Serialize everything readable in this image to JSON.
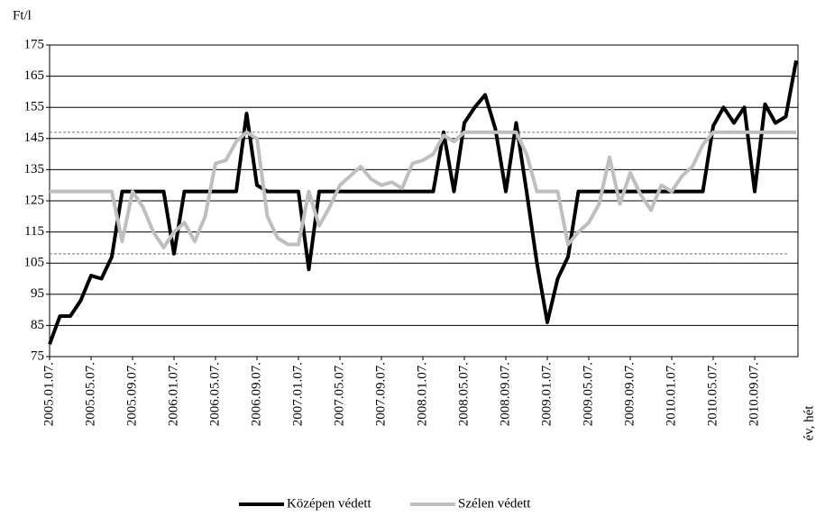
{
  "chart_data": {
    "type": "line",
    "y_label": "Ft/l",
    "x_label": "év, hét",
    "categories": [
      "2005.01.07.",
      null,
      null,
      null,
      "2005.05.07.",
      null,
      null,
      null,
      "2005.09.07.",
      null,
      null,
      null,
      "2006.01.07.",
      null,
      null,
      null,
      "2006.05.07.",
      null,
      null,
      null,
      "2006.09.07.",
      null,
      null,
      null,
      "2007.01.07.",
      null,
      null,
      null,
      "2007.05.07.",
      null,
      null,
      null,
      "2007.09.07.",
      null,
      null,
      null,
      "2008.01.07.",
      null,
      null,
      null,
      "2008.05.07.",
      null,
      null,
      null,
      "2008.09.07.",
      null,
      null,
      null,
      "2009.01.07.",
      null,
      null,
      null,
      "2009.05.07.",
      null,
      null,
      null,
      "2009.09.07.",
      null,
      null,
      null,
      "2010.01.07.",
      null,
      null,
      null,
      "2010.05.07.",
      null,
      null,
      null,
      "2010.09.07.",
      null,
      null,
      null,
      null
    ],
    "series": [
      {
        "name": "Középen védett",
        "color": "#000000",
        "values": [
          79,
          88,
          88,
          93,
          101,
          100,
          107,
          128,
          128,
          128,
          128,
          128,
          108,
          128,
          128,
          128,
          128,
          128,
          128,
          153,
          130,
          128,
          128,
          128,
          128,
          103,
          128,
          128,
          128,
          128,
          128,
          128,
          128,
          128,
          128,
          128,
          128,
          128,
          147,
          128,
          150,
          155,
          159,
          148,
          128,
          150,
          128,
          105,
          86,
          100,
          107,
          128,
          128,
          128,
          128,
          128,
          128,
          128,
          128,
          128,
          128,
          128,
          128,
          128,
          149,
          155,
          150,
          155,
          128,
          156,
          150,
          152,
          170
        ]
      },
      {
        "name": "Szélen védett",
        "color": "#bfbfbf",
        "values": [
          128,
          128,
          128,
          128,
          128,
          128,
          128,
          112,
          128,
          123,
          115,
          110,
          115,
          118,
          112,
          120,
          137,
          138,
          144,
          147,
          145,
          120,
          113,
          111,
          111,
          128,
          117,
          123,
          130,
          133,
          136,
          132,
          130,
          131,
          129,
          137,
          138,
          140,
          146,
          144,
          147,
          147,
          147,
          147,
          147,
          147,
          140,
          128,
          128,
          128,
          111,
          115,
          118,
          124,
          139,
          124,
          134,
          127,
          122,
          130,
          128,
          133,
          136,
          143,
          147,
          147,
          147,
          147,
          147,
          147,
          147,
          147,
          147
        ]
      }
    ],
    "hlines": [
      147,
      108
    ],
    "ylim": [
      75,
      175
    ],
    "yticks": [
      75,
      85,
      95,
      105,
      115,
      125,
      135,
      145,
      155,
      165,
      175
    ],
    "grid": true,
    "legend": "bottom"
  }
}
